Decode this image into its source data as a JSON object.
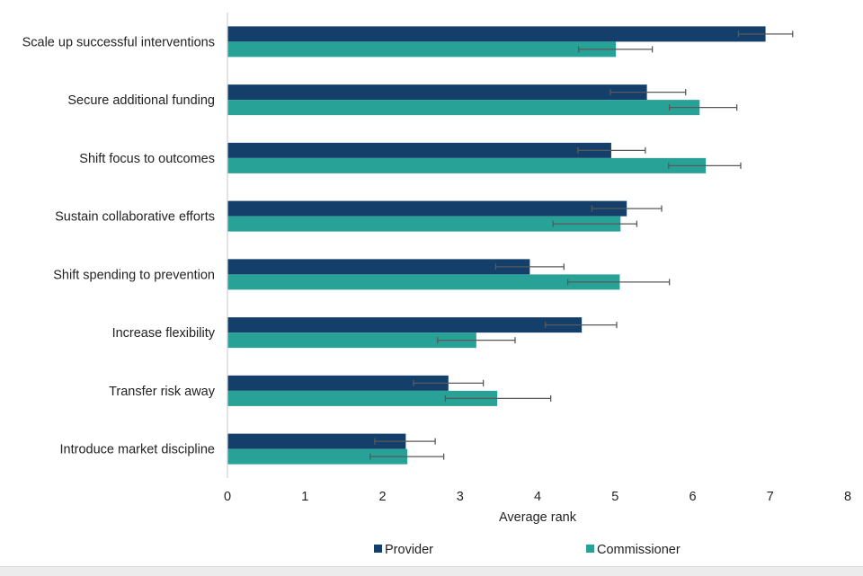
{
  "chart_data": {
    "type": "bar",
    "orientation": "horizontal",
    "title": "",
    "xlabel": "Average rank",
    "ylabel": "",
    "xlim": [
      0,
      8
    ],
    "xticks": [
      0,
      1,
      2,
      3,
      4,
      5,
      6,
      7,
      8
    ],
    "grid": false,
    "legend_position": "bottom",
    "categories": [
      "Scale up successful interventions",
      "Secure additional funding",
      "Shift focus to outcomes",
      "Sustain collaborative efforts",
      "Shift spending to prevention",
      "Increase flexibility",
      "Transfer risk away",
      "Introduce market discipline"
    ],
    "series": [
      {
        "name": "Provider",
        "color": "#143f6b",
        "values": [
          6.94,
          5.41,
          4.95,
          5.15,
          3.9,
          4.57,
          2.85,
          2.3
        ],
        "error_low": [
          6.59,
          4.94,
          4.52,
          4.7,
          3.46,
          4.1,
          2.4,
          1.9
        ],
        "error_high": [
          7.29,
          5.91,
          5.39,
          5.6,
          4.34,
          5.02,
          3.3,
          2.68
        ]
      },
      {
        "name": "Commissioner",
        "color": "#28a197",
        "values": [
          5.01,
          6.09,
          6.17,
          5.07,
          5.06,
          3.21,
          3.48,
          2.32
        ],
        "error_low": [
          4.53,
          5.7,
          5.69,
          4.2,
          4.39,
          2.71,
          2.81,
          1.84
        ],
        "error_high": [
          5.48,
          6.57,
          6.62,
          5.28,
          5.7,
          3.71,
          4.17,
          2.79
        ]
      }
    ]
  }
}
